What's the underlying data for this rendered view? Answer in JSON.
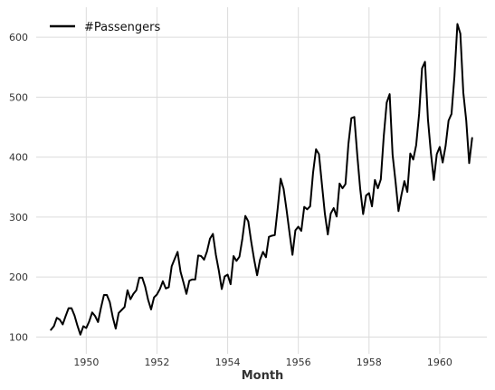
{
  "chart_data": {
    "type": "line",
    "title": "",
    "xlabel": "Month",
    "ylabel": "",
    "grid": true,
    "legend_position": "top-left",
    "x_start": "1949-01",
    "x_ticks": [
      "1950",
      "1952",
      "1954",
      "1956",
      "1958",
      "1960"
    ],
    "y_ticks": [
      100,
      200,
      300,
      400,
      500,
      600
    ],
    "xlim": [
      "1948-08",
      "1961-05"
    ],
    "ylim": [
      72,
      650
    ],
    "series": [
      {
        "name": "#Passengers",
        "color": "#000000",
        "values": [
          112,
          118,
          132,
          129,
          121,
          135,
          148,
          148,
          136,
          119,
          104,
          118,
          115,
          126,
          141,
          135,
          125,
          149,
          170,
          170,
          158,
          133,
          114,
          140,
          145,
          150,
          178,
          163,
          172,
          178,
          199,
          199,
          184,
          162,
          146,
          166,
          171,
          180,
          193,
          181,
          183,
          218,
          230,
          242,
          209,
          191,
          172,
          194,
          196,
          196,
          236,
          235,
          229,
          243,
          264,
          272,
          237,
          211,
          180,
          201,
          204,
          188,
          235,
          227,
          234,
          264,
          302,
          293,
          259,
          229,
          203,
          229,
          242,
          233,
          267,
          269,
          270,
          315,
          364,
          347,
          312,
          274,
          237,
          278,
          284,
          277,
          317,
          313,
          318,
          374,
          413,
          405,
          355,
          306,
          271,
          306,
          315,
          301,
          356,
          348,
          355,
          422,
          465,
          467,
          404,
          347,
          305,
          336,
          340,
          318,
          362,
          348,
          363,
          435,
          491,
          505,
          404,
          359,
          310,
          337,
          360,
          342,
          406,
          396,
          420,
          472,
          548,
          559,
          463,
          407,
          362,
          405,
          417,
          391,
          419,
          461,
          472,
          535,
          622,
          606,
          508,
          461,
          390,
          432
        ]
      }
    ]
  }
}
